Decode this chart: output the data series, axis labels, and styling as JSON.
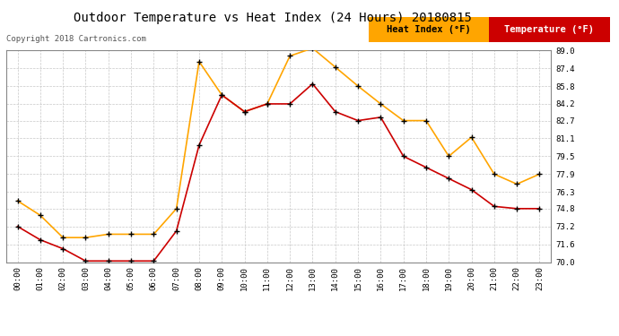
{
  "title": "Outdoor Temperature vs Heat Index (24 Hours) 20180815",
  "copyright": "Copyright 2018 Cartronics.com",
  "legend_heat_index": "Heat Index (°F)",
  "legend_temperature": "Temperature (°F)",
  "heat_index_color": "#FFA500",
  "temperature_color": "#CC0000",
  "background_color": "#FFFFFF",
  "plot_bg_color": "#FFFFFF",
  "grid_color": "#C8C8C8",
  "ylim": [
    70.0,
    89.0
  ],
  "yticks": [
    70.0,
    71.6,
    73.2,
    74.8,
    76.3,
    77.9,
    79.5,
    81.1,
    82.7,
    84.2,
    85.8,
    87.4,
    89.0
  ],
  "hours": [
    "00:00",
    "01:00",
    "02:00",
    "03:00",
    "04:00",
    "05:00",
    "06:00",
    "07:00",
    "08:00",
    "09:00",
    "10:00",
    "11:00",
    "12:00",
    "13:00",
    "14:00",
    "15:00",
    "16:00",
    "17:00",
    "18:00",
    "19:00",
    "20:00",
    "21:00",
    "22:00",
    "23:00"
  ],
  "heat_index": [
    75.5,
    74.2,
    72.2,
    72.2,
    72.5,
    72.5,
    72.5,
    74.8,
    88.0,
    85.0,
    83.5,
    84.2,
    88.5,
    89.2,
    87.5,
    85.8,
    84.2,
    82.7,
    82.7,
    79.5,
    81.2,
    77.9,
    77.0,
    77.9
  ],
  "temperature": [
    73.2,
    72.0,
    71.2,
    70.1,
    70.1,
    70.1,
    70.1,
    72.8,
    80.5,
    85.0,
    83.5,
    84.2,
    84.2,
    86.0,
    83.5,
    82.7,
    83.0,
    79.5,
    78.5,
    77.5,
    76.5,
    75.0,
    74.8,
    74.8
  ],
  "marker": "+",
  "marker_color": "#000000",
  "marker_size": 5,
  "linewidth": 1.2,
  "title_fontsize": 10,
  "axis_fontsize": 6.5,
  "copyright_fontsize": 6.5,
  "legend_fontsize": 7.5
}
